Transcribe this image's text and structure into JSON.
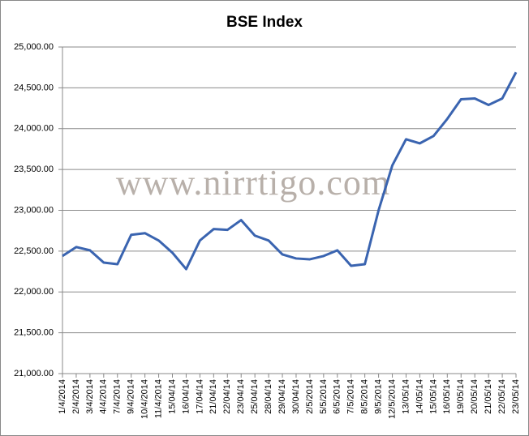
{
  "chart_data": {
    "type": "line",
    "title": "BSE Index",
    "watermark": "www.nirrtigo.com",
    "categories": [
      "1/4/2014",
      "2/4/2014",
      "3/4/2014",
      "4/4/2014",
      "7/4/2014",
      "9/4/2014",
      "10/4/2014",
      "11/4/2014",
      "15/04/14",
      "16/04/14",
      "17/04/14",
      "21/04/14",
      "22/04/14",
      "23/04/14",
      "25/04/14",
      "28/04/14",
      "29/04/14",
      "30/04/14",
      "2/5/2014",
      "5/5/2014",
      "6/5/2014",
      "7/5/2014",
      "8/5/2014",
      "9/5/2014",
      "12/5/2014",
      "13/05/14",
      "14/05/14",
      "15/05/14",
      "16/05/14",
      "19/05/14",
      "20/05/14",
      "21/05/14",
      "22/05/14",
      "23/05/14"
    ],
    "values": [
      22440,
      22550,
      22510,
      22360,
      22340,
      22700,
      22720,
      22630,
      22480,
      22280,
      22630,
      22770,
      22760,
      22880,
      22690,
      22630,
      22460,
      22410,
      22400,
      22440,
      22510,
      22320,
      22340,
      23000,
      23550,
      23870,
      23820,
      23910,
      24120,
      24360,
      24370,
      24290,
      24370,
      24690
    ],
    "color": "#3a64b0",
    "ylim": [
      21000,
      25000
    ],
    "yticks": [
      {
        "value": 21000,
        "label": "21,000.00"
      },
      {
        "value": 21500,
        "label": "21,500.00"
      },
      {
        "value": 22000,
        "label": "22,000.00"
      },
      {
        "value": 22500,
        "label": "22,500.00"
      },
      {
        "value": 23000,
        "label": "23,000.00"
      },
      {
        "value": 23500,
        "label": "23,500.00"
      },
      {
        "value": 24000,
        "label": "24,000.00"
      },
      {
        "value": 24500,
        "label": "24,500.00"
      },
      {
        "value": 25000,
        "label": "25,000.00"
      }
    ],
    "grid": true
  }
}
